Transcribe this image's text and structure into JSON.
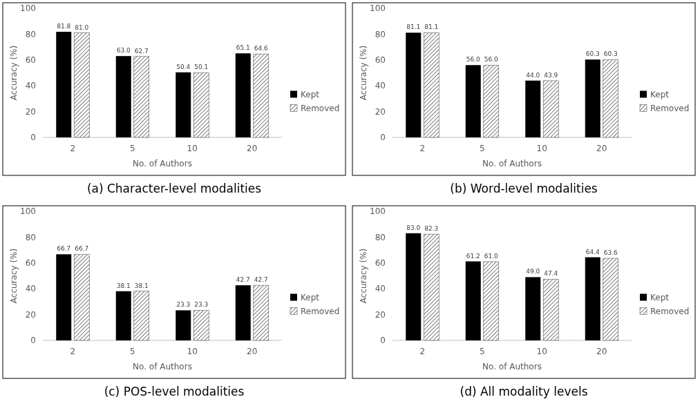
{
  "chart_data": [
    {
      "type": "bar",
      "title": "(a) Character-level modalities",
      "xlabel": "No. of Authors",
      "ylabel": "Accuracy (%)",
      "categories": [
        "2",
        "5",
        "10",
        "20"
      ],
      "series": [
        {
          "name": "Kept",
          "color": "#000000",
          "values": [
            81.8,
            63.0,
            50.4,
            65.1
          ]
        },
        {
          "name": "Removed",
          "color": "#595959",
          "values": [
            81.0,
            62.7,
            50.1,
            64.6
          ]
        }
      ],
      "value_labels": [
        [
          "81.8",
          "63.0",
          "50.4",
          "65.1"
        ],
        [
          "81.0",
          "62.7",
          "50.1",
          "64.6"
        ]
      ],
      "ylim": [
        0,
        100
      ],
      "yticks": [
        0,
        20,
        40,
        60,
        80,
        100
      ],
      "grid": false,
      "legend": "right"
    },
    {
      "type": "bar",
      "title": "(b) Word-level modalities",
      "xlabel": "No. of Authors",
      "ylabel": "Accuracy (%)",
      "categories": [
        "2",
        "5",
        "10",
        "20"
      ],
      "series": [
        {
          "name": "Kept",
          "color": "#000000",
          "values": [
            81.1,
            56.0,
            44.0,
            60.3
          ]
        },
        {
          "name": "Removed",
          "color": "#595959",
          "values": [
            81.1,
            56.0,
            43.9,
            60.3
          ]
        }
      ],
      "value_labels": [
        [
          "81.1",
          "56.0",
          "44.0",
          "60.3"
        ],
        [
          "81.1",
          "56.0",
          "43.9",
          "60.3"
        ]
      ],
      "ylim": [
        0,
        100
      ],
      "yticks": [
        0,
        20,
        40,
        60,
        80,
        100
      ],
      "grid": false,
      "legend": "right"
    },
    {
      "type": "bar",
      "title": "(c) POS-level modalities",
      "xlabel": "No. of Authors",
      "ylabel": "Accuracy (%)",
      "categories": [
        "2",
        "5",
        "10",
        "20"
      ],
      "series": [
        {
          "name": "Kept",
          "color": "#000000",
          "values": [
            66.7,
            38.1,
            23.3,
            42.7
          ]
        },
        {
          "name": "Removed",
          "color": "#595959",
          "values": [
            66.7,
            38.1,
            23.3,
            42.7
          ]
        }
      ],
      "value_labels": [
        [
          "66.7",
          "38.1",
          "23.3",
          "42.7"
        ],
        [
          "66.7",
          "38.1",
          "23.3",
          "42.7"
        ]
      ],
      "ylim": [
        0,
        100
      ],
      "yticks": [
        0,
        20,
        40,
        60,
        80,
        100
      ],
      "grid": false,
      "legend": "right"
    },
    {
      "type": "bar",
      "title": "(d) All modality levels",
      "xlabel": "No. of Authors",
      "ylabel": "Accuracy (%)",
      "categories": [
        "2",
        "5",
        "10",
        "20"
      ],
      "series": [
        {
          "name": "Kept",
          "color": "#000000",
          "values": [
            83.0,
            61.2,
            49.0,
            64.4
          ]
        },
        {
          "name": "Removed",
          "color": "#595959",
          "values": [
            82.3,
            61.0,
            47.4,
            63.6
          ]
        }
      ],
      "value_labels": [
        [
          "83.0",
          "61.2",
          "49.0",
          "64.4"
        ],
        [
          "82.3",
          "61.0",
          "47.4",
          "63.6"
        ]
      ],
      "ylim": [
        0,
        100
      ],
      "yticks": [
        0,
        20,
        40,
        60,
        80,
        100
      ],
      "grid": false,
      "legend": "right"
    }
  ]
}
